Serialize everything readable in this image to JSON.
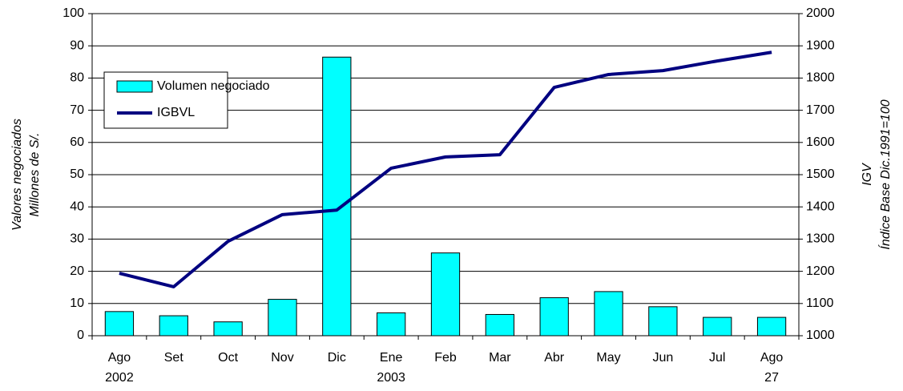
{
  "chart_data": {
    "type": "bar-line",
    "categories": [
      "Ago",
      "Set",
      "Oct",
      "Nov",
      "Dic",
      "Ene",
      "Feb",
      "Mar",
      "Abr",
      "May",
      "Jun",
      "Jul",
      "Ago"
    ],
    "category_sublabels": [
      "2002",
      null,
      null,
      null,
      null,
      "2003",
      null,
      null,
      null,
      null,
      null,
      null,
      "27"
    ],
    "y_label": [
      "Valores negociados",
      "Millones de S/."
    ],
    "y2_label": [
      "IGV",
      "Índice Base Dic.1991=100"
    ],
    "series": [
      {
        "name": "Volumen negociado",
        "type": "bar",
        "color": "#00ffff",
        "values": [
          7.5,
          6.2,
          4.3,
          11.3,
          86.5,
          7.1,
          25.7,
          6.6,
          11.8,
          13.7,
          9.0,
          5.7,
          5.7
        ]
      },
      {
        "name": "IGBVL",
        "type": "line",
        "axis": "y2",
        "color": "#000080",
        "values": [
          1194,
          1152,
          1293,
          1376,
          1390,
          1520,
          1555,
          1562,
          1771,
          1811,
          1823,
          1853,
          1880
        ]
      }
    ],
    "ylim": [
      0,
      100
    ],
    "yticks": [
      0,
      10,
      20,
      30,
      40,
      50,
      60,
      70,
      80,
      90,
      100
    ],
    "y2lim": [
      1000,
      2000
    ],
    "y2ticks": [
      1000,
      1100,
      1200,
      1300,
      1400,
      1500,
      1600,
      1700,
      1800,
      1900,
      2000
    ],
    "grid": true,
    "legend": "upper left"
  }
}
